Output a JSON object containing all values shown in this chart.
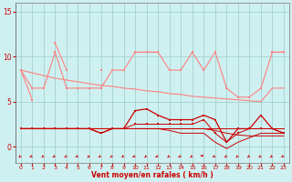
{
  "x": [
    0,
    1,
    2,
    3,
    4,
    5,
    6,
    7,
    8,
    9,
    10,
    11,
    12,
    13,
    14,
    15,
    16,
    17,
    18,
    19,
    20,
    21,
    22,
    23
  ],
  "series": [
    {
      "name": "rafales_jagged",
      "color": "#ff8080",
      "linewidth": 0.8,
      "markersize": 2.0,
      "values": [
        8.5,
        5.2,
        null,
        11.5,
        8.5,
        null,
        null,
        8.5,
        null,
        null,
        10.5,
        10.5,
        10.5,
        null,
        null,
        10.5,
        null,
        10.5,
        null,
        null,
        null,
        null,
        10.5,
        10.5
      ]
    },
    {
      "name": "rafales_smooth",
      "color": "#ff8080",
      "linewidth": 0.8,
      "markersize": 2.0,
      "values": [
        8.5,
        6.5,
        6.5,
        10.5,
        6.5,
        6.5,
        6.5,
        6.5,
        8.5,
        8.5,
        10.5,
        10.5,
        10.5,
        8.5,
        8.5,
        10.5,
        8.5,
        10.5,
        6.5,
        5.5,
        5.5,
        6.5,
        10.5,
        10.5
      ]
    },
    {
      "name": "rafales_trend",
      "color": "#ff8080",
      "linewidth": 0.8,
      "markersize": 0,
      "values": [
        8.5,
        8.2,
        7.9,
        7.6,
        7.4,
        7.2,
        7.0,
        6.8,
        6.7,
        6.5,
        6.4,
        6.2,
        6.1,
        5.9,
        5.8,
        5.6,
        5.5,
        5.4,
        5.3,
        5.2,
        5.1,
        5.0,
        6.5,
        6.5
      ]
    },
    {
      "name": "wind_markers",
      "color": "#cc0000",
      "linewidth": 0.9,
      "markersize": 2.0,
      "values": [
        2.0,
        2.0,
        2.0,
        2.0,
        2.0,
        2.0,
        2.0,
        1.5,
        2.0,
        2.0,
        4.0,
        4.2,
        3.5,
        3.0,
        3.0,
        3.0,
        3.5,
        3.0,
        0.5,
        2.0,
        2.0,
        3.5,
        2.0,
        1.5
      ]
    },
    {
      "name": "wind_flat1",
      "color": "#cc0000",
      "linewidth": 0.7,
      "markersize": 0,
      "values": [
        2.0,
        2.0,
        2.0,
        2.0,
        2.0,
        2.0,
        2.0,
        2.0,
        2.0,
        2.0,
        2.0,
        2.0,
        2.0,
        2.0,
        2.0,
        2.0,
        2.0,
        2.0,
        2.0,
        2.0,
        2.0,
        2.0,
        2.0,
        2.0
      ]
    },
    {
      "name": "wind_flat2",
      "color": "#cc0000",
      "linewidth": 0.7,
      "markersize": 0,
      "values": [
        2.0,
        2.0,
        2.0,
        2.0,
        2.0,
        2.0,
        2.0,
        2.0,
        2.0,
        2.0,
        2.0,
        2.0,
        2.0,
        2.0,
        2.0,
        2.0,
        2.0,
        1.8,
        1.5,
        1.3,
        1.2,
        1.2,
        1.2,
        1.2
      ]
    },
    {
      "name": "wind_dip",
      "color": "#cc0000",
      "linewidth": 0.7,
      "markersize": 0,
      "values": [
        2.0,
        2.0,
        2.0,
        2.0,
        2.0,
        2.0,
        2.0,
        2.0,
        2.0,
        2.0,
        2.0,
        2.0,
        2.0,
        1.8,
        1.5,
        1.5,
        1.5,
        0.5,
        -0.2,
        0.5,
        1.0,
        1.5,
        1.5,
        1.5
      ]
    },
    {
      "name": "wind_dip2",
      "color": "#cc0000",
      "linewidth": 0.7,
      "markersize": 2.0,
      "values": [
        2.0,
        2.0,
        2.0,
        2.0,
        2.0,
        2.0,
        2.0,
        1.5,
        2.0,
        2.0,
        2.5,
        2.5,
        2.5,
        2.5,
        2.5,
        2.5,
        3.0,
        1.5,
        0.5,
        1.5,
        2.0,
        2.0,
        2.0,
        1.5
      ]
    }
  ],
  "xlabel": "Vent moyen/en rafales ( km/h )",
  "xlim": [
    -0.5,
    23.5
  ],
  "ylim": [
    -1.8,
    16
  ],
  "yticks": [
    0,
    5,
    10,
    15
  ],
  "xticks": [
    0,
    1,
    2,
    3,
    4,
    5,
    6,
    7,
    8,
    9,
    10,
    11,
    12,
    13,
    14,
    15,
    16,
    17,
    18,
    19,
    20,
    21,
    22,
    23
  ],
  "bg_color": "#cff0f0",
  "grid_color": "#99cccc",
  "tick_color": "#cc0000",
  "label_color": "#cc0000"
}
